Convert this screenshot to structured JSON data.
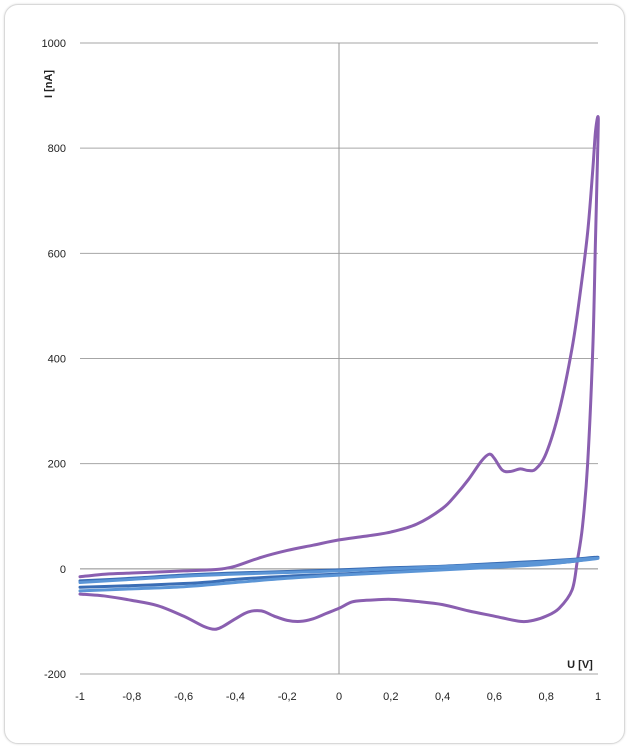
{
  "chart_data": {
    "type": "line",
    "title": "",
    "xlabel": "U [V]",
    "ylabel": "I [nA]",
    "xlim": [
      -1,
      1
    ],
    "ylim": [
      -200,
      1000
    ],
    "x_ticks": [
      -1,
      -0.8,
      -0.6,
      -0.4,
      -0.2,
      0,
      0.2,
      0.4,
      0.6,
      0.8,
      1
    ],
    "x_tick_labels": [
      "-1",
      "-0,8",
      "-0,6",
      "-0,4",
      "-0,2",
      "0",
      "0,2",
      "0,4",
      "0,6",
      "0,8",
      "1"
    ],
    "y_ticks": [
      -200,
      0,
      200,
      400,
      600,
      800,
      1000
    ],
    "y_tick_labels": [
      "-200",
      "0",
      "200",
      "400",
      "600",
      "800",
      "1000"
    ],
    "grid": "horizontal",
    "legend": "none",
    "series": [
      {
        "color": "#8a5fb0",
        "x": [
          -1,
          -0.9,
          -0.8,
          -0.7,
          -0.6,
          -0.5,
          -0.45,
          -0.4,
          -0.3,
          -0.2,
          -0.1,
          0,
          0.1,
          0.2,
          0.3,
          0.4,
          0.45,
          0.5,
          0.55,
          0.58,
          0.6,
          0.63,
          0.66,
          0.7,
          0.73,
          0.76,
          0.8,
          0.85,
          0.9,
          0.93,
          0.96,
          0.98,
          0.99,
          1.0,
          1.0,
          0.99,
          0.98,
          0.96,
          0.94,
          0.92,
          0.9,
          0.85,
          0.8,
          0.75,
          0.7,
          0.6,
          0.5,
          0.4,
          0.3,
          0.2,
          0.1,
          0.05,
          0,
          -0.05,
          -0.1,
          -0.15,
          -0.2,
          -0.25,
          -0.3,
          -0.35,
          -0.4,
          -0.45,
          -0.48,
          -0.52,
          -0.6,
          -0.7,
          -0.8,
          -0.9,
          -1
        ],
        "y": [
          -15,
          -10,
          -8,
          -6,
          -4,
          -2,
          0,
          5,
          22,
          35,
          45,
          55,
          62,
          70,
          85,
          115,
          140,
          170,
          205,
          218,
          210,
          188,
          185,
          190,
          187,
          190,
          220,
          300,
          420,
          520,
          640,
          760,
          830,
          860,
          820,
          620,
          420,
          200,
          80,
          15,
          -40,
          -75,
          -90,
          -98,
          -100,
          -90,
          -80,
          -68,
          -62,
          -58,
          -60,
          -63,
          -75,
          -85,
          -95,
          -100,
          -98,
          -90,
          -80,
          -82,
          -95,
          -110,
          -115,
          -110,
          -90,
          -70,
          -60,
          -52,
          -48
        ]
      },
      {
        "color": "#3a6db5",
        "x": [
          -1,
          -0.8,
          -0.6,
          -0.5,
          -0.4,
          -0.2,
          0,
          0.2,
          0.4,
          0.6,
          0.8,
          0.9,
          1.0,
          0.9,
          0.8,
          0.6,
          0.4,
          0.2,
          0,
          -0.2,
          -0.4,
          -0.6,
          -0.8,
          -1
        ],
        "y": [
          -35,
          -32,
          -28,
          -25,
          -20,
          -14,
          -10,
          -5,
          0,
          5,
          10,
          14,
          22,
          18,
          15,
          10,
          5,
          2,
          -2,
          -5,
          -8,
          -12,
          -18,
          -23
        ]
      },
      {
        "color": "#5b95d6",
        "x": [
          -1,
          -0.8,
          -0.6,
          -0.4,
          -0.2,
          0,
          0.2,
          0.4,
          0.6,
          0.8,
          1.0,
          0.8,
          0.6,
          0.4,
          0.2,
          0,
          -0.2,
          -0.4,
          -0.6,
          -0.8,
          -1
        ],
        "y": [
          -42,
          -38,
          -34,
          -26,
          -18,
          -12,
          -7,
          -2,
          3,
          9,
          20,
          13,
          8,
          4,
          0,
          -4,
          -7,
          -10,
          -14,
          -20,
          -26
        ]
      }
    ]
  }
}
